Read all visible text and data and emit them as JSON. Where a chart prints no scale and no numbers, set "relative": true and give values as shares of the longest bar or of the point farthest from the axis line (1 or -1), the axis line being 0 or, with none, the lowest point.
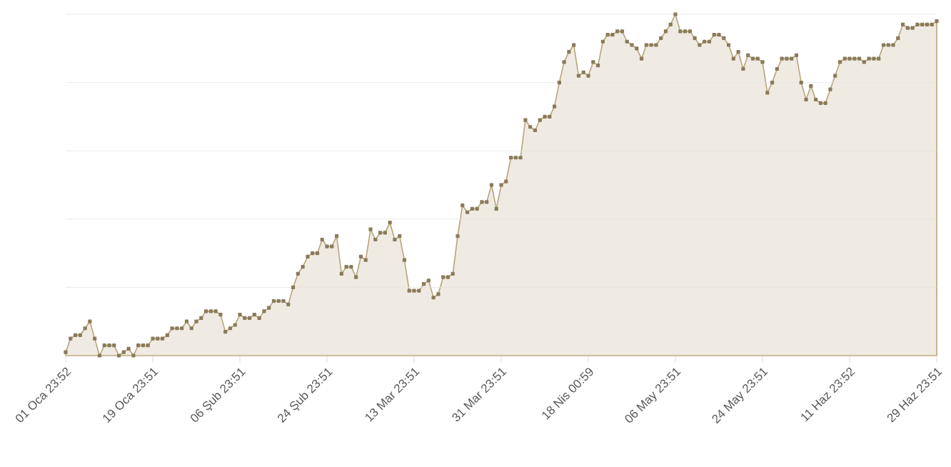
{
  "chart_data": {
    "type": "area",
    "relative": true,
    "color": "#b8a47a",
    "marker": "square",
    "line_style": "solid",
    "grid": "y",
    "tick_labels": "x",
    "categories": [
      "01 Oca 23:52",
      null,
      null,
      null,
      null,
      null,
      null,
      null,
      null,
      null,
      null,
      null,
      null,
      null,
      null,
      null,
      null,
      null,
      "19 Oca 23:51",
      null,
      null,
      null,
      null,
      null,
      null,
      null,
      null,
      null,
      null,
      null,
      null,
      null,
      null,
      null,
      null,
      null,
      "06 Şub 23:51",
      null,
      null,
      null,
      null,
      null,
      null,
      null,
      null,
      null,
      null,
      null,
      null,
      null,
      null,
      null,
      null,
      null,
      "24 Şub 23:51",
      null,
      null,
      null,
      null,
      null,
      null,
      null,
      null,
      null,
      null,
      null,
      null,
      null,
      null,
      null,
      null,
      null,
      "13 Mar 23:51",
      null,
      null,
      null,
      null,
      null,
      null,
      null,
      null,
      null,
      null,
      null,
      null,
      null,
      null,
      null,
      null,
      null,
      "31 Mar 23:51",
      null,
      null,
      null,
      null,
      null,
      null,
      null,
      null,
      null,
      null,
      null,
      null,
      null,
      null,
      null,
      null,
      null,
      "18 Nis 00:59",
      null,
      null,
      null,
      null,
      null,
      null,
      null,
      null,
      null,
      null,
      null,
      null,
      null,
      null,
      null,
      null,
      null,
      "06 May 23:51",
      null,
      null,
      null,
      null,
      null,
      null,
      null,
      null,
      null,
      null,
      null,
      null,
      null,
      null,
      null,
      null,
      null,
      "24 May 23:51",
      null,
      null,
      null,
      null,
      null,
      null,
      null,
      null,
      null,
      null,
      null,
      null,
      null,
      null,
      null,
      null,
      null,
      "11 Haz 23:52",
      null,
      null,
      null,
      null,
      null,
      null,
      null,
      null,
      null,
      null,
      null,
      null,
      null,
      null,
      null,
      null,
      null,
      "29 Haz 23:51"
    ],
    "values": [
      0.01,
      0.05,
      0.06,
      0.06,
      0.08,
      0.1,
      0.05,
      0.0,
      0.03,
      0.03,
      0.03,
      0.0,
      0.01,
      0.02,
      0.0,
      0.03,
      0.03,
      0.03,
      0.05,
      0.05,
      0.05,
      0.06,
      0.08,
      0.08,
      0.08,
      0.1,
      0.08,
      0.1,
      0.11,
      0.13,
      0.13,
      0.13,
      0.12,
      0.07,
      0.08,
      0.09,
      0.12,
      0.11,
      0.11,
      0.12,
      0.11,
      0.13,
      0.14,
      0.16,
      0.16,
      0.16,
      0.15,
      0.2,
      0.24,
      0.26,
      0.29,
      0.3,
      0.3,
      0.34,
      0.32,
      0.32,
      0.35,
      0.24,
      0.26,
      0.26,
      0.23,
      0.29,
      0.28,
      0.37,
      0.34,
      0.36,
      0.36,
      0.39,
      0.34,
      0.35,
      0.28,
      0.19,
      0.19,
      0.19,
      0.21,
      0.22,
      0.17,
      0.18,
      0.23,
      0.23,
      0.24,
      0.35,
      0.44,
      0.42,
      0.43,
      0.43,
      0.45,
      0.45,
      0.5,
      0.43,
      0.5,
      0.51,
      0.58,
      0.58,
      0.58,
      0.69,
      0.67,
      0.66,
      0.69,
      0.7,
      0.7,
      0.73,
      0.8,
      0.86,
      0.89,
      0.91,
      0.82,
      0.83,
      0.82,
      0.86,
      0.85,
      0.92,
      0.94,
      0.94,
      0.95,
      0.95,
      0.92,
      0.91,
      0.9,
      0.87,
      0.91,
      0.91,
      0.91,
      0.93,
      0.95,
      0.97,
      1.0,
      0.95,
      0.95,
      0.95,
      0.93,
      0.91,
      0.92,
      0.92,
      0.94,
      0.94,
      0.93,
      0.91,
      0.87,
      0.89,
      0.84,
      0.88,
      0.87,
      0.87,
      0.86,
      0.77,
      0.8,
      0.84,
      0.87,
      0.87,
      0.87,
      0.88,
      0.8,
      0.75,
      0.79,
      0.75,
      0.74,
      0.74,
      0.78,
      0.82,
      0.86,
      0.87,
      0.87,
      0.87,
      0.87,
      0.86,
      0.87,
      0.87,
      0.87,
      0.91,
      0.91,
      0.91,
      0.93,
      0.97,
      0.96,
      0.96,
      0.97,
      0.97,
      0.97,
      0.97,
      0.98
    ]
  }
}
